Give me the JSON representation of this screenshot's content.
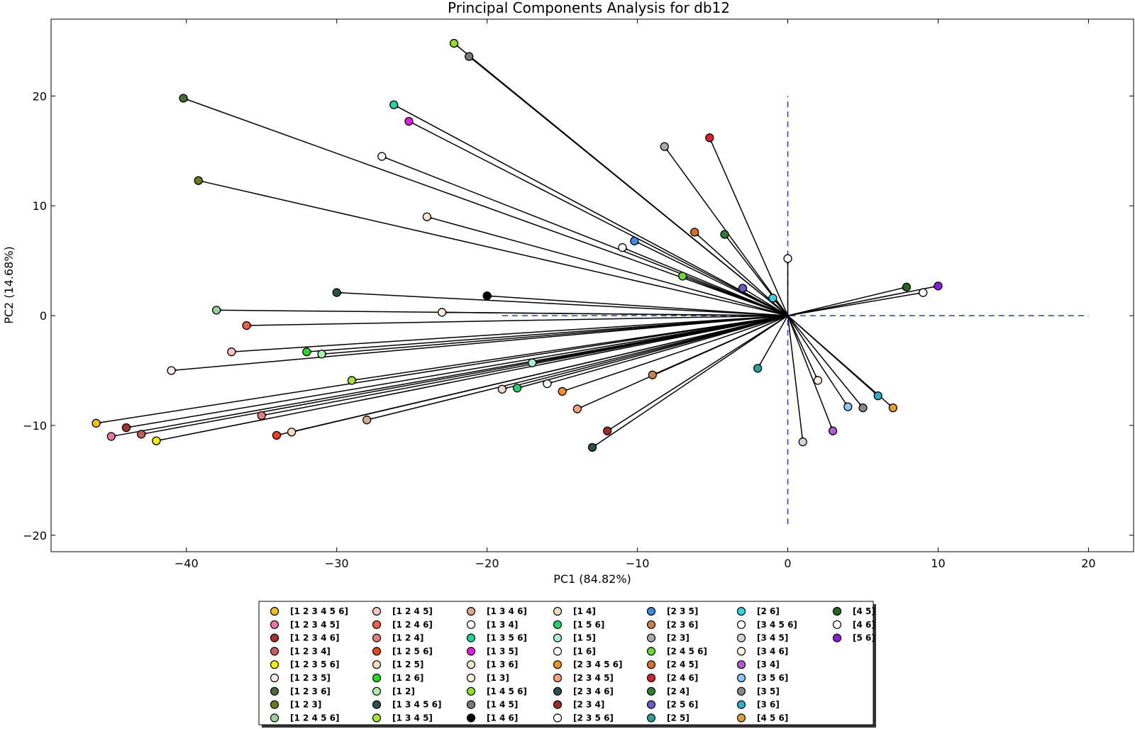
{
  "chart_data": {
    "type": "biplot",
    "title": "Principal Components Analysis for db12",
    "xlabel": "PC1 (84.82%)",
    "ylabel": "PC2 (14.68%)",
    "xlim": [
      -49,
      23
    ],
    "ylim": [
      -21.5,
      27
    ],
    "x_ticks": [
      -40,
      -30,
      -20,
      -10,
      0,
      10,
      20
    ],
    "y_ticks": [
      -20,
      -10,
      0,
      10,
      20
    ],
    "x_tick_labels": [
      "−40",
      "−30",
      "−20",
      "−10",
      "0",
      "10",
      "20"
    ],
    "y_tick_labels": [
      "−20",
      "−10",
      "0",
      "10",
      "20"
    ],
    "origin": [
      0,
      0
    ],
    "reference_lines": {
      "horizontal": {
        "y": 0,
        "x_from": -19,
        "x_to": 20
      },
      "vertical": {
        "x": 0,
        "y_from": -19,
        "y_to": 20
      }
    },
    "series": [
      {
        "name": "[1 2 3 4 5 6]",
        "color": "#f2c21b",
        "x": -46,
        "y": -9.8
      },
      {
        "name": "[1 2 3 4 5]",
        "color": "#e875a8",
        "x": -45,
        "y": -11
      },
      {
        "name": "[1 2 3 4 6]",
        "color": "#a83232",
        "x": -44,
        "y": -10.2
      },
      {
        "name": "[1 2 3 4]",
        "color": "#cc5c5c",
        "x": -43,
        "y": -10.8
      },
      {
        "name": "[1 2 3 5 6]",
        "color": "#f5f000",
        "x": -42,
        "y": -11.4
      },
      {
        "name": "[1 2 3 5]",
        "color": "#fde8e8",
        "x": -41,
        "y": -5
      },
      {
        "name": "[1 2 3 6]",
        "color": "#4b6b34",
        "x": -40.2,
        "y": 19.8
      },
      {
        "name": "[1 2 3]",
        "color": "#6b7a1a",
        "x": -39.2,
        "y": 12.3
      },
      {
        "name": "[1 2 4 5 6]",
        "color": "#9ecf9e",
        "x": -38,
        "y": 0.5
      },
      {
        "name": "[1 2 4 5]",
        "color": "#f7c4c4",
        "x": -37,
        "y": -3.3
      },
      {
        "name": "[1 2 4 6]",
        "color": "#ee5c4a",
        "x": -36,
        "y": -0.9
      },
      {
        "name": "[1 2 4]",
        "color": "#e58080",
        "x": -35,
        "y": -9.1
      },
      {
        "name": "[1 2 5 6]",
        "color": "#e8431c",
        "x": -34,
        "y": -10.9
      },
      {
        "name": "[1 2 5]",
        "color": "#f7dcc0",
        "x": -33,
        "y": -10.6
      },
      {
        "name": "[1 2 6]",
        "color": "#22dd22",
        "x": -32,
        "y": -3.3
      },
      {
        "name": "[1 2]",
        "color": "#a8f0a8",
        "x": -31,
        "y": -3.5
      },
      {
        "name": "[1 3 4 5 6]",
        "color": "#2d4f4f",
        "x": -30,
        "y": 2.1
      },
      {
        "name": "[1 3 4 5]",
        "color": "#a6e22e",
        "x": -29,
        "y": -5.9
      },
      {
        "name": "[1 3 4 6]",
        "color": "#d9a98b",
        "x": -28,
        "y": -9.5
      },
      {
        "name": "[1 3 4]",
        "color": "#ffffff",
        "x": -27,
        "y": 14.5
      },
      {
        "name": "[1 3 5 6]",
        "color": "#1fd6a0",
        "x": -26.2,
        "y": 19.2
      },
      {
        "name": "[1 3 5]",
        "color": "#e020e0",
        "x": -25.2,
        "y": 17.7
      },
      {
        "name": "[1 3 6]",
        "color": "#f7e2d0",
        "x": -24,
        "y": 9
      },
      {
        "name": "[1 3]",
        "color": "#fdeed8",
        "x": -23,
        "y": 0.3
      },
      {
        "name": "[1 4 5 6]",
        "color": "#8ee02a",
        "x": -22.2,
        "y": 24.8
      },
      {
        "name": "[1 4 5]",
        "color": "#7a7a7a",
        "x": -21.2,
        "y": 23.6
      },
      {
        "name": "[1 4 6]",
        "color": "#000000",
        "x": -20,
        "y": 1.8
      },
      {
        "name": "[1 4]",
        "color": "#f0dcc4",
        "x": -19,
        "y": -6.7
      },
      {
        "name": "[1 5 6]",
        "color": "#24d16a",
        "x": -18,
        "y": -6.6
      },
      {
        "name": "[1 5]",
        "color": "#a8f0d8",
        "x": -17,
        "y": -4.3
      },
      {
        "name": "[1 6]",
        "color": "#ffffff",
        "x": -16,
        "y": -6.2
      },
      {
        "name": "[2 3 4 5 6]",
        "color": "#f0941e",
        "x": -15,
        "y": -6.9
      },
      {
        "name": "[2 3 4 5]",
        "color": "#f4a180",
        "x": -14,
        "y": -8.5
      },
      {
        "name": "[2 3 4 6]",
        "color": "#2d4f4f",
        "x": -13,
        "y": -12
      },
      {
        "name": "[2 3 4]",
        "color": "#9e2a2a",
        "x": -12,
        "y": -10.5
      },
      {
        "name": "[2 3 5 6]",
        "color": "#ffffff",
        "x": -11,
        "y": 6.2
      },
      {
        "name": "[2 3 5]",
        "color": "#3a8ee6",
        "x": -10.2,
        "y": 6.8
      },
      {
        "name": "[2 3 6]",
        "color": "#c8824a",
        "x": -9,
        "y": -5.4
      },
      {
        "name": "[2 3]",
        "color": "#aaaaaa",
        "x": -8.2,
        "y": 15.4
      },
      {
        "name": "[2 4 5 6]",
        "color": "#6fd63a",
        "x": -7,
        "y": 3.6
      },
      {
        "name": "[2 4 5]",
        "color": "#d8702a",
        "x": -6.2,
        "y": 7.6
      },
      {
        "name": "[2 4 6]",
        "color": "#d42030",
        "x": -5.2,
        "y": 16.2
      },
      {
        "name": "[2 4]",
        "color": "#2e7d32",
        "x": -4.2,
        "y": 7.4
      },
      {
        "name": "[2 5 6]",
        "color": "#6a5acd",
        "x": -3,
        "y": 2.5
      },
      {
        "name": "[2 5]",
        "color": "#2aa198",
        "x": -2,
        "y": -4.8
      },
      {
        "name": "[2 6]",
        "color": "#33d6e8",
        "x": -1,
        "y": 1.6
      },
      {
        "name": "[3 4 5 6]",
        "color": "#ffffff",
        "x": 0,
        "y": 5.2
      },
      {
        "name": "[3 4 5]",
        "color": "#d4d4d4",
        "x": 1,
        "y": -11.5
      },
      {
        "name": "[3 4 6]",
        "color": "#fdf3e0",
        "x": 2,
        "y": -5.9
      },
      {
        "name": "[3 4]",
        "color": "#b45cd6",
        "x": 3,
        "y": -10.5
      },
      {
        "name": "[3 5 6]",
        "color": "#8cc8f0",
        "x": 4,
        "y": -8.3
      },
      {
        "name": "[3 5]",
        "color": "#8a8a8a",
        "x": 5,
        "y": -8.4
      },
      {
        "name": "[3 6]",
        "color": "#2ab0c8",
        "x": 6,
        "y": -7.3
      },
      {
        "name": "[4 5 6]",
        "color": "#e0a030",
        "x": 7,
        "y": -8.4
      },
      {
        "name": "[4 5]",
        "color": "#1e6b1e",
        "x": 7.9,
        "y": 2.6
      },
      {
        "name": "[4 6]",
        "color": "#ffffff",
        "x": 9,
        "y": 2.1
      },
      {
        "name": "[5 6]",
        "color": "#8a1ed6",
        "x": 10,
        "y": 2.7
      }
    ]
  }
}
